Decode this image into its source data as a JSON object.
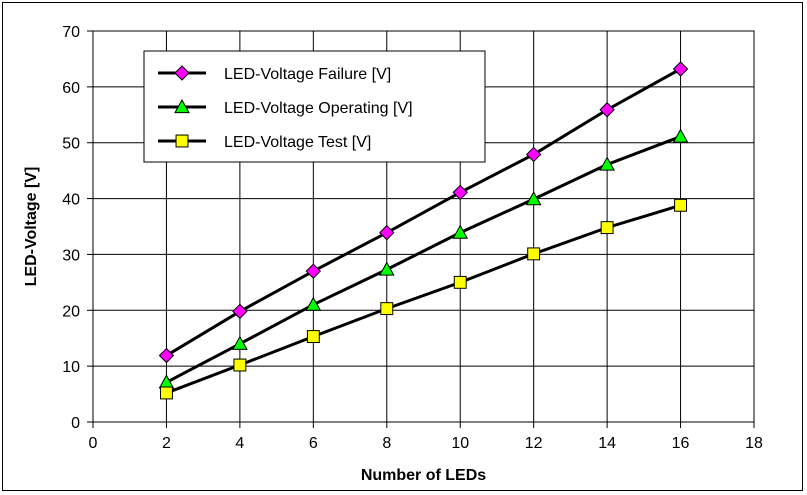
{
  "chart_data": {
    "type": "line",
    "title": "",
    "xlabel": "Number of  LEDs",
    "ylabel": "LED-Voltage [V]",
    "xlim": [
      0,
      18
    ],
    "ylim": [
      0,
      70
    ],
    "xticks": [
      0,
      2,
      4,
      6,
      8,
      10,
      12,
      14,
      16,
      18
    ],
    "yticks": [
      0,
      10,
      20,
      30,
      40,
      50,
      60,
      70
    ],
    "grid": true,
    "legend_position": "top-left",
    "x": [
      2,
      4,
      6,
      8,
      10,
      12,
      14,
      16
    ],
    "series": [
      {
        "name": "LED-Voltage Failure [V]",
        "marker": "diamond",
        "marker_color": "#ff00ff",
        "values": [
          11.9,
          19.8,
          27,
          33.9,
          41.1,
          47.9,
          55.9,
          63.2
        ]
      },
      {
        "name": "LED-Voltage Operating [V]",
        "marker": "triangle",
        "marker_color": "#00ff00",
        "values": [
          7.1,
          14,
          21,
          27.3,
          33.9,
          39.9,
          46.1,
          51.1
        ]
      },
      {
        "name": "LED-Voltage Test [V]",
        "marker": "square",
        "marker_color": "#ffff00",
        "values": [
          5.2,
          10.2,
          15.3,
          20.3,
          25,
          30.1,
          34.8,
          38.8
        ]
      }
    ]
  }
}
